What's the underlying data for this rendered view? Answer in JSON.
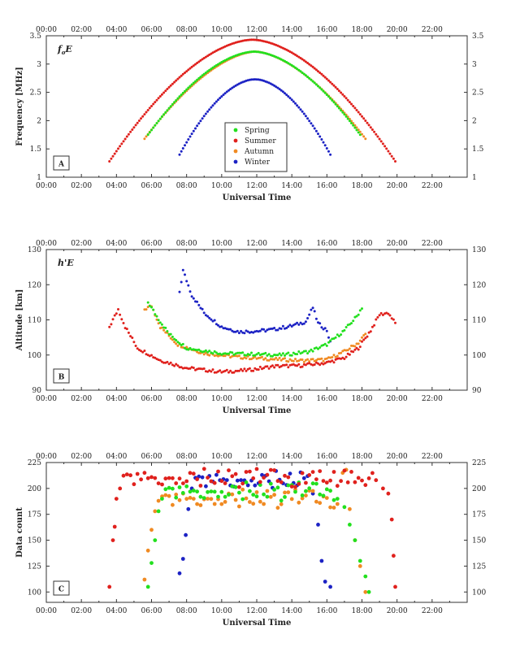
{
  "time_labels": [
    "00:00",
    "02:00",
    "04:00",
    "06:00",
    "08:00",
    "10:00",
    "12:00",
    "14:00",
    "16:00",
    "18:00",
    "20:00",
    "22:00"
  ],
  "series": [
    {
      "key": "spring",
      "name": "Spring",
      "color": "#22e01e"
    },
    {
      "key": "summer",
      "name": "Summer",
      "color": "#e0211d"
    },
    {
      "key": "autumn",
      "name": "Autumn",
      "color": "#f08a22"
    },
    {
      "key": "winter",
      "name": "Winter",
      "color": "#1c22c4"
    }
  ],
  "chart_data": [
    {
      "id": "A",
      "type": "scatter",
      "panel_label": "A",
      "title": "foE",
      "title_main": "f",
      "title_sub": "o",
      "title_tail": "E",
      "xlabel": "Universal Time",
      "ylabel": "Frequency [MHz]",
      "xlim": [
        0,
        24
      ],
      "ylim": [
        1,
        3.5
      ],
      "yticks": [
        1,
        1.5,
        2,
        2.5,
        3,
        3.5
      ],
      "ytick_labels": [
        "1",
        "1.5",
        "2",
        "2.5",
        "3",
        "3.5"
      ],
      "legend": "center",
      "series": [
        {
          "name": "Spring",
          "kind": "arch",
          "start": 5.8,
          "end": 17.9,
          "peak": 3.22,
          "base": 1.75,
          "p": 1.15,
          "step": 0.1
        },
        {
          "name": "Summer",
          "kind": "arch",
          "start": 3.6,
          "end": 19.9,
          "peak": 3.43,
          "base": 1.28,
          "p": 1.15,
          "step": 0.1
        },
        {
          "name": "Autumn",
          "kind": "arch",
          "start": 5.6,
          "end": 18.2,
          "peak": 3.22,
          "base": 1.68,
          "p": 1.2,
          "step": 0.1
        },
        {
          "name": "Winter",
          "kind": "arch",
          "start": 7.6,
          "end": 16.2,
          "peak": 2.73,
          "base": 1.4,
          "p": 1.1,
          "step": 0.1
        }
      ]
    },
    {
      "id": "B",
      "type": "scatter",
      "panel_label": "B",
      "title": "h'E",
      "title_main": "h'E",
      "title_sub": "",
      "title_tail": "",
      "xlabel": "Universal Time",
      "ylabel": "Altitude [km]",
      "xlim": [
        0,
        24
      ],
      "ylim": [
        90,
        130
      ],
      "yticks": [
        90,
        100,
        110,
        120,
        130
      ],
      "ytick_labels": [
        "90",
        "100",
        "110",
        "120",
        "130"
      ],
      "legend": "none",
      "series": [
        {
          "name": "Spring",
          "kind": "profile",
          "step": 0.1,
          "knots": [
            [
              5.8,
              115
            ],
            [
              6.3,
              111
            ],
            [
              7,
              106
            ],
            [
              8,
              102
            ],
            [
              10,
              100.5
            ],
            [
              12,
              100.2
            ],
            [
              13.5,
              100
            ],
            [
              15,
              101
            ],
            [
              16,
              103
            ],
            [
              17,
              107
            ],
            [
              17.7,
              111
            ],
            [
              18,
              113.5
            ]
          ]
        },
        {
          "name": "Summer",
          "kind": "profile",
          "step": 0.1,
          "knots": [
            [
              3.6,
              108
            ],
            [
              4.1,
              113
            ],
            [
              4.5,
              108
            ],
            [
              5.2,
              102
            ],
            [
              6.5,
              98.5
            ],
            [
              8,
              96.3
            ],
            [
              10,
              95.2
            ],
            [
              11.5,
              95.7
            ],
            [
              13,
              96.8
            ],
            [
              14.5,
              97
            ],
            [
              16,
              97.8
            ],
            [
              17,
              99.2
            ],
            [
              17.8,
              102
            ],
            [
              18.5,
              107
            ],
            [
              19,
              111.5
            ],
            [
              19.5,
              112
            ],
            [
              19.9,
              109
            ]
          ]
        },
        {
          "name": "Autumn",
          "kind": "profile",
          "step": 0.1,
          "knots": [
            [
              5.6,
              113
            ],
            [
              6,
              114
            ],
            [
              6.5,
              108
            ],
            [
              7.5,
              103
            ],
            [
              9,
              100.5
            ],
            [
              11,
              99.4
            ],
            [
              13,
              98.8
            ],
            [
              14.5,
              98.4
            ],
            [
              16,
              98.7
            ],
            [
              17,
              101
            ],
            [
              17.8,
              103.5
            ],
            [
              18.2,
              106
            ]
          ]
        },
        {
          "name": "Winter",
          "kind": "profile",
          "step": 0.1,
          "knots": [
            [
              7.6,
              118
            ],
            [
              7.8,
              124
            ],
            [
              8.3,
              117
            ],
            [
              9,
              112
            ],
            [
              10,
              108
            ],
            [
              11,
              106.6
            ],
            [
              12,
              106.8
            ],
            [
              13,
              107.3
            ],
            [
              14,
              108.3
            ],
            [
              14.8,
              109.5
            ],
            [
              15.2,
              113.5
            ],
            [
              15.5,
              109
            ],
            [
              16,
              107
            ],
            [
              16.2,
              103.5
            ]
          ]
        }
      ]
    },
    {
      "id": "C",
      "type": "scatter",
      "panel_label": "C",
      "title": "",
      "xlabel": "Universal Time",
      "ylabel": "Data count",
      "xlim": [
        0,
        24
      ],
      "ylim": [
        90,
        225
      ],
      "yticks": [
        100,
        125,
        150,
        175,
        200,
        225
      ],
      "ytick_labels": [
        "100",
        "125",
        "150",
        "175",
        "200",
        "225"
      ],
      "legend": "none",
      "series": [
        {
          "name": "Spring",
          "kind": "plateau",
          "step": 0.2,
          "start": 5.8,
          "end": 18.4,
          "level": 197,
          "ramp_up": [
            [
              5.8,
              105
            ],
            [
              6,
              128
            ],
            [
              6.2,
              150
            ],
            [
              6.4,
              178
            ],
            [
              6.6,
              190
            ]
          ],
          "ramp_down": [
            [
              16.6,
              190
            ],
            [
              17,
              182
            ],
            [
              17.3,
              165
            ],
            [
              17.6,
              150
            ],
            [
              17.9,
              130
            ],
            [
              18.2,
              115
            ],
            [
              18.4,
              100
            ]
          ]
        },
        {
          "name": "Summer",
          "kind": "plateau",
          "step": 0.2,
          "start": 3.6,
          "end": 19.9,
          "level": 210,
          "ramp_up": [
            [
              3.6,
              105
            ],
            [
              3.8,
              150
            ],
            [
              3.9,
              163
            ],
            [
              4,
              190
            ],
            [
              4.2,
              200
            ]
          ],
          "ramp_down": [
            [
              18.8,
              208
            ],
            [
              19.2,
              200
            ],
            [
              19.5,
              195
            ],
            [
              19.7,
              170
            ],
            [
              19.8,
              135
            ],
            [
              19.9,
              105
            ]
          ]
        },
        {
          "name": "Autumn",
          "kind": "plateau",
          "step": 0.2,
          "start": 5.6,
          "end": 18.2,
          "level": 190,
          "ramp_up": [
            [
              5.6,
              112
            ],
            [
              5.8,
              140
            ],
            [
              6,
              160
            ],
            [
              6.2,
              178
            ],
            [
              6.4,
              188
            ]
          ],
          "ramp_down": [
            [
              16.6,
              185
            ],
            [
              16.9,
              215
            ],
            [
              17.1,
              218
            ],
            [
              17.3,
              180
            ],
            [
              17.6,
              150
            ],
            [
              17.9,
              125
            ],
            [
              18.2,
              100
            ]
          ]
        },
        {
          "name": "Winter",
          "kind": "plateau",
          "step": 0.2,
          "start": 7.6,
          "end": 16.2,
          "level": 208,
          "ramp_up": [
            [
              7.6,
              118
            ],
            [
              7.8,
              132
            ],
            [
              7.95,
              155
            ],
            [
              8.1,
              180
            ],
            [
              8.3,
              200
            ]
          ],
          "ramp_down": [
            [
              15.2,
              195
            ],
            [
              15.5,
              165
            ],
            [
              15.7,
              130
            ],
            [
              15.9,
              110
            ],
            [
              16.2,
              105
            ]
          ]
        }
      ]
    }
  ]
}
